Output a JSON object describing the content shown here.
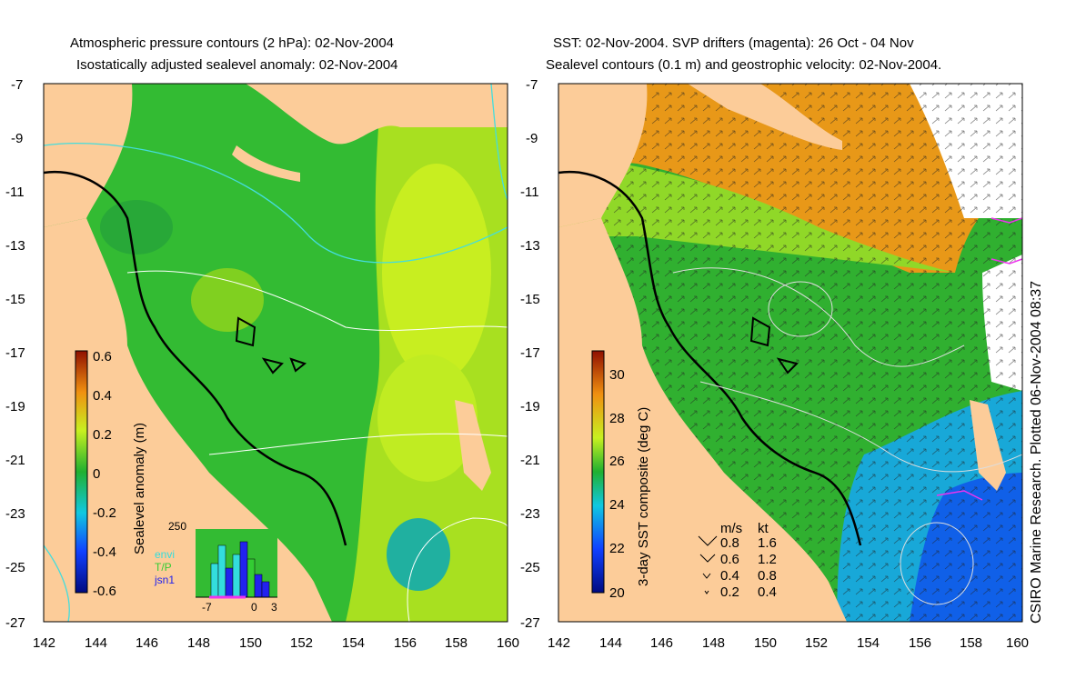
{
  "left_panel": {
    "title_line1": "Atmospheric pressure contours (2 hPa): 02-Nov-2004",
    "title_line2": "Isostatically adjusted sealevel anomaly: 02-Nov-2004",
    "x_ticks": [
      "142",
      "144",
      "146",
      "148",
      "150",
      "152",
      "154",
      "156",
      "158",
      "160"
    ],
    "y_ticks": [
      "-7",
      "-9",
      "-11",
      "-13",
      "-15",
      "-17",
      "-19",
      "-21",
      "-23",
      "-25",
      "-27"
    ],
    "colorbar": {
      "label": "Sealevel anomaly (m)",
      "ticks": [
        "0.6",
        "0.4",
        "0.2",
        "0",
        "-0.2",
        "-0.4",
        "-0.6"
      ]
    },
    "inset": {
      "ymax_label": "250",
      "x_labels": [
        "-7",
        "0",
        "3"
      ],
      "legend": [
        {
          "name": "envi",
          "color": "#33dddd"
        },
        {
          "name": "T/P",
          "color": "#33cc33"
        },
        {
          "name": "jsn1",
          "color": "#2222ee"
        }
      ]
    }
  },
  "right_panel": {
    "title_line1": "SST: 02-Nov-2004. SVP drifters (magenta): 26 Oct - 04 Nov",
    "title_line2": "Sealevel contours (0.1 m) and geostrophic velocity: 02-Nov-2004.",
    "x_ticks": [
      "142",
      "144",
      "146",
      "148",
      "150",
      "152",
      "154",
      "156",
      "158",
      "160"
    ],
    "y_ticks": [
      "-7",
      "-9",
      "-11",
      "-13",
      "-15",
      "-17",
      "-19",
      "-21",
      "-23",
      "-25",
      "-27"
    ],
    "colorbar": {
      "label": "3-day SST composite (deg C)",
      "ticks": [
        "30",
        "28",
        "26",
        "24",
        "22",
        "20"
      ]
    },
    "velocity_key": {
      "header_ms": "m/s",
      "header_kt": "kt",
      "rows": [
        {
          "ms": "0.8",
          "kt": "1.6"
        },
        {
          "ms": "0.6",
          "kt": "1.2"
        },
        {
          "ms": "0.4",
          "kt": "0.8"
        },
        {
          "ms": "0.2",
          "kt": "0.4"
        }
      ]
    }
  },
  "credit": "CSIRO Marine Research. Plotted 06-Nov-2004 08:37",
  "colors": {
    "land": "#fccc99",
    "ocean_green": "#33bb33",
    "magenta": "#ee33ee",
    "pressure_contour": "#44dddd"
  }
}
